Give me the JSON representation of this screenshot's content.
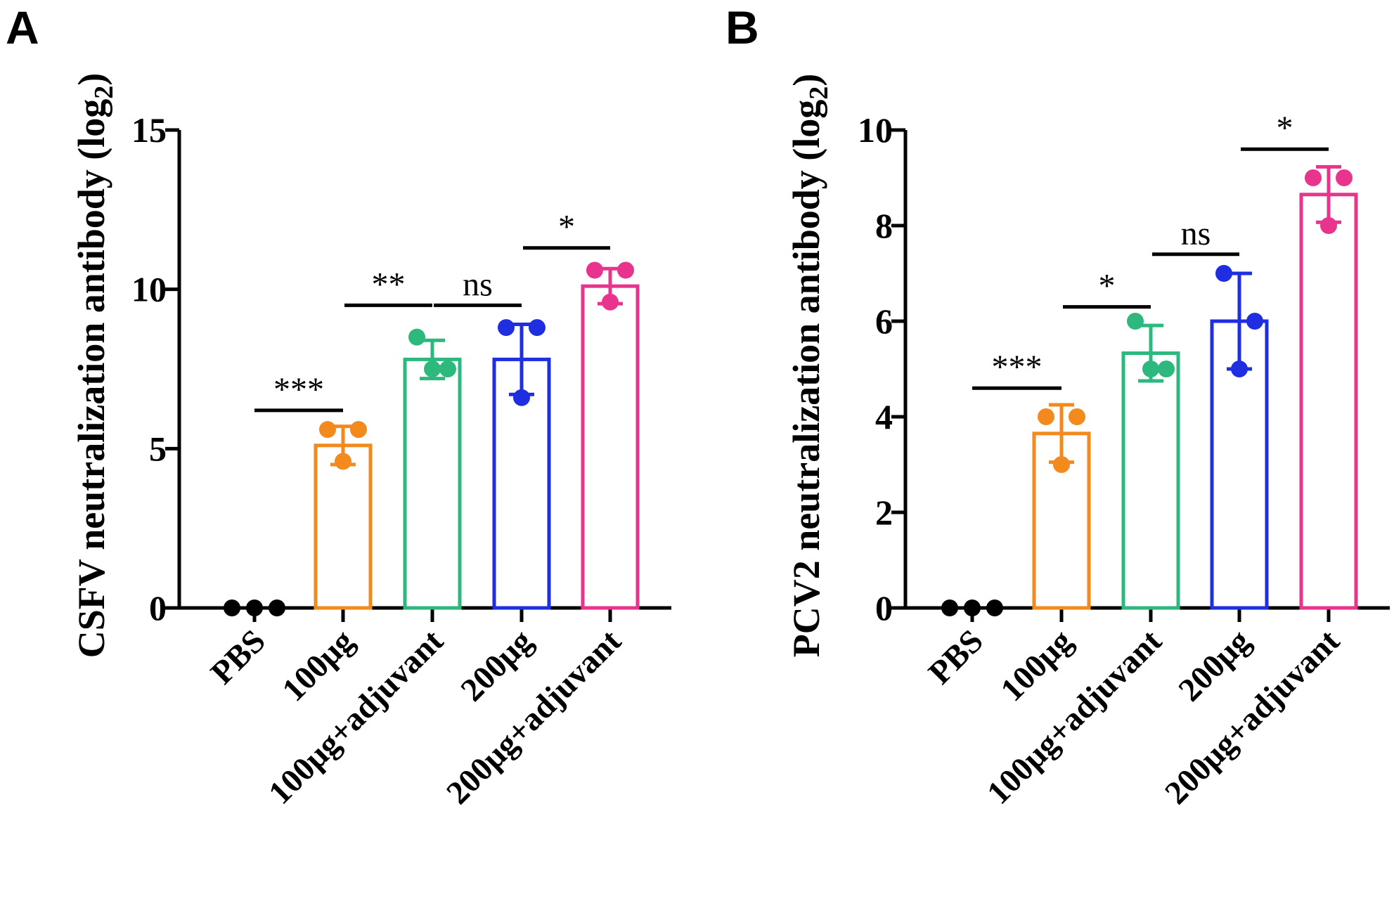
{
  "chart_data": [
    {
      "panel": "A",
      "type": "bar",
      "ylabel": "CSFV neutralization antibody (log",
      "ylabel_sub": "2",
      "ylabel_end": ")",
      "ylim": [
        0,
        15
      ],
      "yticks": [
        0,
        5,
        10,
        15
      ],
      "categories": [
        "PBS",
        "100μg",
        "100μg+adjuvant",
        "200μg",
        "200μg+adjuvant"
      ],
      "colors": [
        "#000000",
        "#f28a1e",
        "#2db87d",
        "#1f2ee0",
        "#e8348c"
      ],
      "values": [
        0,
        5.1,
        7.8,
        7.8,
        10.1
      ],
      "errors": [
        0,
        0.6,
        0.6,
        1.1,
        0.55
      ],
      "points": [
        [
          0,
          0,
          0
        ],
        [
          5.6,
          5.6,
          4.6
        ],
        [
          8.5,
          7.5,
          7.5
        ],
        [
          8.8,
          8.8,
          6.6
        ],
        [
          10.6,
          10.6,
          9.6
        ]
      ],
      "significance": [
        {
          "from": 0,
          "to": 1,
          "label": "***",
          "y": 6.2
        },
        {
          "from": 1,
          "to": 2,
          "label": "**",
          "y": 9.5
        },
        {
          "from": 2,
          "to": 3,
          "label": "ns",
          "y": 9.5
        },
        {
          "from": 3,
          "to": 4,
          "label": "*",
          "y": 11.3
        }
      ]
    },
    {
      "panel": "B",
      "type": "bar",
      "ylabel": "PCV2 neutralization antibody (log",
      "ylabel_sub": "2",
      "ylabel_end": ")",
      "ylim": [
        0,
        10
      ],
      "yticks": [
        0,
        2,
        4,
        6,
        8,
        10
      ],
      "categories": [
        "PBS",
        "100μg",
        "100μg+adjuvant",
        "200μg",
        "200μg+adjuvant"
      ],
      "colors": [
        "#000000",
        "#f28a1e",
        "#2db87d",
        "#1f2ee0",
        "#e8348c"
      ],
      "values": [
        0,
        3.65,
        5.33,
        6.0,
        8.65
      ],
      "errors": [
        0,
        0.6,
        0.58,
        1.0,
        0.58
      ],
      "points": [
        [
          0,
          0,
          0
        ],
        [
          4.0,
          4.0,
          3.0
        ],
        [
          6.0,
          5.0,
          5.0
        ],
        [
          7.0,
          6.0,
          5.0
        ],
        [
          9.0,
          9.0,
          8.0
        ]
      ],
      "significance": [
        {
          "from": 0,
          "to": 1,
          "label": "***",
          "y": 4.6
        },
        {
          "from": 1,
          "to": 2,
          "label": "*",
          "y": 6.3
        },
        {
          "from": 2,
          "to": 3,
          "label": "ns",
          "y": 7.4
        },
        {
          "from": 3,
          "to": 4,
          "label": "*",
          "y": 9.6
        }
      ]
    }
  ]
}
